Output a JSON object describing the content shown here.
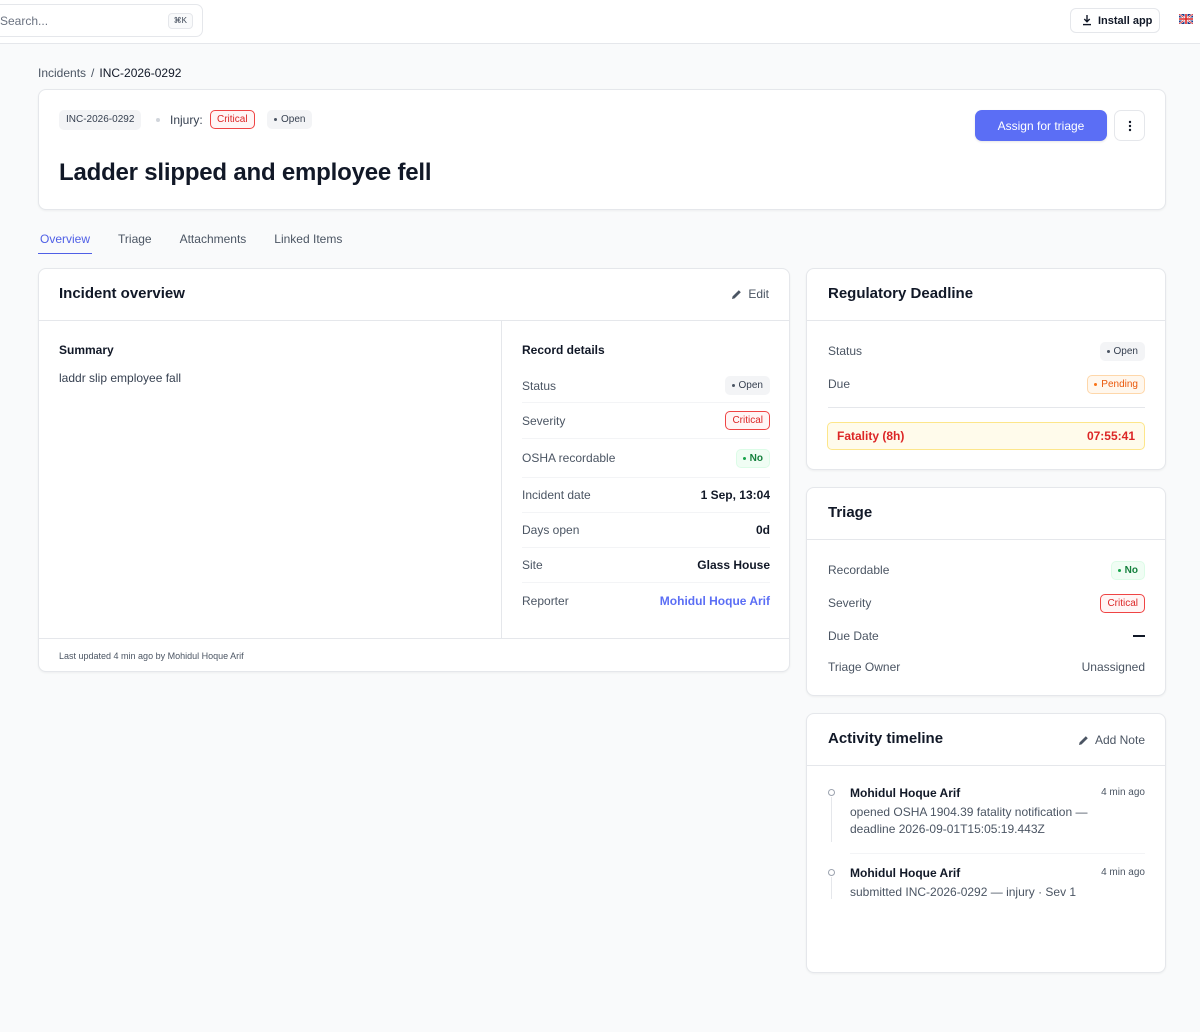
{
  "topbar": {
    "search_placeholder": "Search...",
    "search_shortcut": "⌘K",
    "install_label": "Install app",
    "language_flag": "uk-flag-icon"
  },
  "breadcrumb": {
    "root": "Incidents",
    "separator": "/",
    "current": "INC-2026-0292"
  },
  "header": {
    "incident_id": "INC-2026-0292",
    "type_label": "Injury:",
    "severity_badge": "Critical",
    "status_badge": "Open",
    "assign_button": "Assign for triage",
    "title": "Ladder slipped and employee fell"
  },
  "tabs": [
    {
      "label": "Overview",
      "active": true
    },
    {
      "label": "Triage",
      "active": false
    },
    {
      "label": "Attachments",
      "active": false
    },
    {
      "label": "Linked Items",
      "active": false
    }
  ],
  "overview": {
    "title": "Incident overview",
    "edit_label": "Edit",
    "summary_heading": "Summary",
    "summary_text": "laddr slip employee fall",
    "record_heading": "Record details",
    "records": {
      "status": {
        "label": "Status",
        "value": "Open"
      },
      "severity": {
        "label": "Severity",
        "value": "Critical"
      },
      "osha": {
        "label": "OSHA recordable",
        "value": "No"
      },
      "incident_date": {
        "label": "Incident date",
        "value": "1 Sep, 13:04"
      },
      "days_open": {
        "label": "Days open",
        "value": "0d"
      },
      "site": {
        "label": "Site",
        "value": "Glass House"
      },
      "reporter": {
        "label": "Reporter",
        "value": "Mohidul Hoque Arif"
      }
    },
    "footer": "Last updated 4 min ago by Mohidul Hoque Arif"
  },
  "regulatory": {
    "title": "Regulatory Deadline",
    "status_label": "Status",
    "status_value": "Open",
    "due_label": "Due",
    "due_value": "Pending",
    "fatality_label": "Fatality (8h)",
    "fatality_countdown": "07:55:41"
  },
  "triage": {
    "title": "Triage",
    "recordable_label": "Recordable",
    "recordable_value": "No",
    "severity_label": "Severity",
    "severity_value": "Critical",
    "due_date_label": "Due Date",
    "owner_label": "Triage Owner",
    "owner_value": "Unassigned"
  },
  "activity": {
    "title": "Activity timeline",
    "add_note_label": "Add Note",
    "items": [
      {
        "author": "Mohidul Hoque Arif",
        "time": "4 min ago",
        "text_line1": "opened OSHA 1904.39 fatality notification —",
        "text_line2": "deadline 2026-09-01T15:05:19.443Z"
      },
      {
        "author": "Mohidul Hoque Arif",
        "time": "4 min ago",
        "text_line1": "submitted INC-2026-0292 — injury · Sev 1"
      }
    ]
  },
  "colors": {
    "accent": "#5b6ef5",
    "critical": "#dc2626",
    "success": "#15803d",
    "warning": "#ea580c"
  }
}
